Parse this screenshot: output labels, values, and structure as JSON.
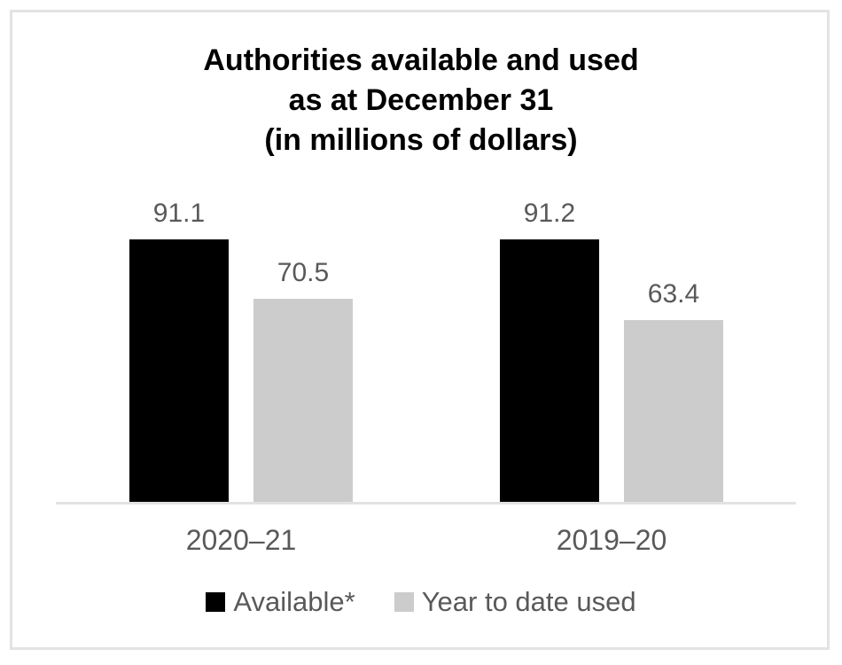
{
  "chart_data": {
    "type": "bar",
    "title": "Authorities available and used as at December 31 (in millions of dollars)",
    "title_lines": [
      "Authorities available and used",
      "as at December 31",
      "(in millions of dollars)"
    ],
    "categories": [
      "2020–21",
      "2019–20"
    ],
    "series": [
      {
        "name": "Available*",
        "color": "#000000",
        "values": [
          91.1,
          91.2
        ]
      },
      {
        "name": "Year to date used",
        "color": "#cccccc",
        "values": [
          70.5,
          63.4
        ]
      }
    ],
    "ylabel": "",
    "xlabel": "",
    "grid": false,
    "y_axis_visible": false,
    "legend_position": "bottom",
    "colors": {
      "title_text": "#000000",
      "label_text": "#595959",
      "axis_line": "#e2e2e2",
      "frame_border": "#e3e3e3"
    }
  }
}
